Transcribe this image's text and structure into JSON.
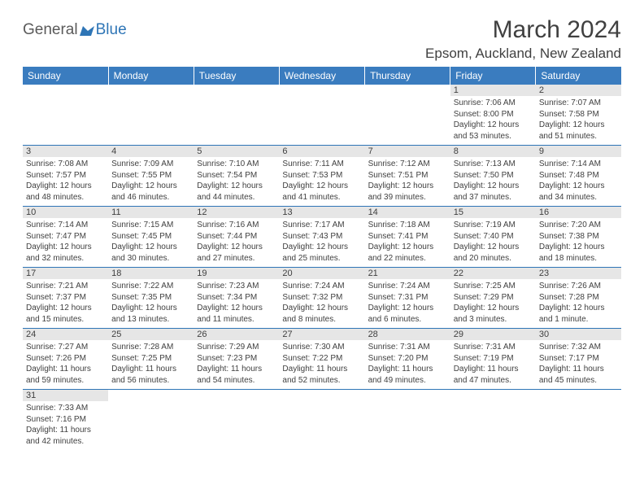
{
  "logo": {
    "text1": "General",
    "text2": "Blue"
  },
  "title": "March 2024",
  "location": "Epsom, Auckland, New Zealand",
  "colors": {
    "header_bg": "#3a7cbf",
    "header_text": "#ffffff",
    "daynum_bg": "#e6e6e6",
    "text": "#404040",
    "border": "#2e75b6",
    "logo_gray": "#5a5a5a",
    "logo_blue": "#2e75b6"
  },
  "daynames": [
    "Sunday",
    "Monday",
    "Tuesday",
    "Wednesday",
    "Thursday",
    "Friday",
    "Saturday"
  ],
  "weeks": [
    [
      null,
      null,
      null,
      null,
      null,
      {
        "n": "1",
        "sr": "Sunrise: 7:06 AM",
        "ss": "Sunset: 8:00 PM",
        "dl": "Daylight: 12 hours and 53 minutes."
      },
      {
        "n": "2",
        "sr": "Sunrise: 7:07 AM",
        "ss": "Sunset: 7:58 PM",
        "dl": "Daylight: 12 hours and 51 minutes."
      }
    ],
    [
      {
        "n": "3",
        "sr": "Sunrise: 7:08 AM",
        "ss": "Sunset: 7:57 PM",
        "dl": "Daylight: 12 hours and 48 minutes."
      },
      {
        "n": "4",
        "sr": "Sunrise: 7:09 AM",
        "ss": "Sunset: 7:55 PM",
        "dl": "Daylight: 12 hours and 46 minutes."
      },
      {
        "n": "5",
        "sr": "Sunrise: 7:10 AM",
        "ss": "Sunset: 7:54 PM",
        "dl": "Daylight: 12 hours and 44 minutes."
      },
      {
        "n": "6",
        "sr": "Sunrise: 7:11 AM",
        "ss": "Sunset: 7:53 PM",
        "dl": "Daylight: 12 hours and 41 minutes."
      },
      {
        "n": "7",
        "sr": "Sunrise: 7:12 AM",
        "ss": "Sunset: 7:51 PM",
        "dl": "Daylight: 12 hours and 39 minutes."
      },
      {
        "n": "8",
        "sr": "Sunrise: 7:13 AM",
        "ss": "Sunset: 7:50 PM",
        "dl": "Daylight: 12 hours and 37 minutes."
      },
      {
        "n": "9",
        "sr": "Sunrise: 7:14 AM",
        "ss": "Sunset: 7:48 PM",
        "dl": "Daylight: 12 hours and 34 minutes."
      }
    ],
    [
      {
        "n": "10",
        "sr": "Sunrise: 7:14 AM",
        "ss": "Sunset: 7:47 PM",
        "dl": "Daylight: 12 hours and 32 minutes."
      },
      {
        "n": "11",
        "sr": "Sunrise: 7:15 AM",
        "ss": "Sunset: 7:45 PM",
        "dl": "Daylight: 12 hours and 30 minutes."
      },
      {
        "n": "12",
        "sr": "Sunrise: 7:16 AM",
        "ss": "Sunset: 7:44 PM",
        "dl": "Daylight: 12 hours and 27 minutes."
      },
      {
        "n": "13",
        "sr": "Sunrise: 7:17 AM",
        "ss": "Sunset: 7:43 PM",
        "dl": "Daylight: 12 hours and 25 minutes."
      },
      {
        "n": "14",
        "sr": "Sunrise: 7:18 AM",
        "ss": "Sunset: 7:41 PM",
        "dl": "Daylight: 12 hours and 22 minutes."
      },
      {
        "n": "15",
        "sr": "Sunrise: 7:19 AM",
        "ss": "Sunset: 7:40 PM",
        "dl": "Daylight: 12 hours and 20 minutes."
      },
      {
        "n": "16",
        "sr": "Sunrise: 7:20 AM",
        "ss": "Sunset: 7:38 PM",
        "dl": "Daylight: 12 hours and 18 minutes."
      }
    ],
    [
      {
        "n": "17",
        "sr": "Sunrise: 7:21 AM",
        "ss": "Sunset: 7:37 PM",
        "dl": "Daylight: 12 hours and 15 minutes."
      },
      {
        "n": "18",
        "sr": "Sunrise: 7:22 AM",
        "ss": "Sunset: 7:35 PM",
        "dl": "Daylight: 12 hours and 13 minutes."
      },
      {
        "n": "19",
        "sr": "Sunrise: 7:23 AM",
        "ss": "Sunset: 7:34 PM",
        "dl": "Daylight: 12 hours and 11 minutes."
      },
      {
        "n": "20",
        "sr": "Sunrise: 7:24 AM",
        "ss": "Sunset: 7:32 PM",
        "dl": "Daylight: 12 hours and 8 minutes."
      },
      {
        "n": "21",
        "sr": "Sunrise: 7:24 AM",
        "ss": "Sunset: 7:31 PM",
        "dl": "Daylight: 12 hours and 6 minutes."
      },
      {
        "n": "22",
        "sr": "Sunrise: 7:25 AM",
        "ss": "Sunset: 7:29 PM",
        "dl": "Daylight: 12 hours and 3 minutes."
      },
      {
        "n": "23",
        "sr": "Sunrise: 7:26 AM",
        "ss": "Sunset: 7:28 PM",
        "dl": "Daylight: 12 hours and 1 minute."
      }
    ],
    [
      {
        "n": "24",
        "sr": "Sunrise: 7:27 AM",
        "ss": "Sunset: 7:26 PM",
        "dl": "Daylight: 11 hours and 59 minutes."
      },
      {
        "n": "25",
        "sr": "Sunrise: 7:28 AM",
        "ss": "Sunset: 7:25 PM",
        "dl": "Daylight: 11 hours and 56 minutes."
      },
      {
        "n": "26",
        "sr": "Sunrise: 7:29 AM",
        "ss": "Sunset: 7:23 PM",
        "dl": "Daylight: 11 hours and 54 minutes."
      },
      {
        "n": "27",
        "sr": "Sunrise: 7:30 AM",
        "ss": "Sunset: 7:22 PM",
        "dl": "Daylight: 11 hours and 52 minutes."
      },
      {
        "n": "28",
        "sr": "Sunrise: 7:31 AM",
        "ss": "Sunset: 7:20 PM",
        "dl": "Daylight: 11 hours and 49 minutes."
      },
      {
        "n": "29",
        "sr": "Sunrise: 7:31 AM",
        "ss": "Sunset: 7:19 PM",
        "dl": "Daylight: 11 hours and 47 minutes."
      },
      {
        "n": "30",
        "sr": "Sunrise: 7:32 AM",
        "ss": "Sunset: 7:17 PM",
        "dl": "Daylight: 11 hours and 45 minutes."
      }
    ],
    [
      {
        "n": "31",
        "sr": "Sunrise: 7:33 AM",
        "ss": "Sunset: 7:16 PM",
        "dl": "Daylight: 11 hours and 42 minutes."
      },
      null,
      null,
      null,
      null,
      null,
      null
    ]
  ]
}
